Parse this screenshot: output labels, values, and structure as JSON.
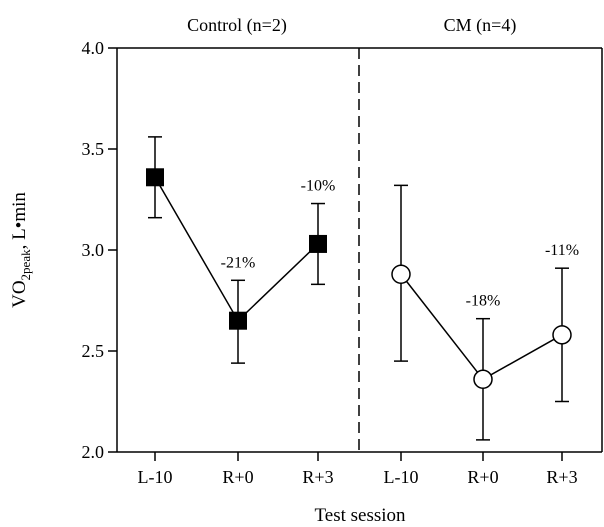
{
  "chart_data": {
    "type": "line",
    "xlabel": "Test session",
    "ylabel": {
      "main": "VO",
      "sub": "2peak",
      "suffix": ", L•min"
    },
    "ylim": [
      2.0,
      4.0
    ],
    "yticks": [
      "2.0",
      "2.5",
      "3.0",
      "3.5",
      "4.0"
    ],
    "grid": false,
    "groups": [
      {
        "title": "Control (n=2)",
        "categories": [
          "L-10",
          "R+0",
          "R+3"
        ],
        "marker": "filled-square",
        "values": [
          3.36,
          2.65,
          3.03
        ],
        "error_low": [
          3.16,
          2.44,
          2.83
        ],
        "error_high": [
          3.56,
          2.85,
          3.23
        ],
        "annotations": [
          "",
          "-21%",
          "-10%"
        ]
      },
      {
        "title": "CM (n=4)",
        "categories": [
          "L-10",
          "R+0",
          "R+3"
        ],
        "marker": "open-circle",
        "values": [
          2.88,
          2.36,
          2.58
        ],
        "error_low": [
          2.45,
          2.06,
          2.25
        ],
        "error_high": [
          3.32,
          2.66,
          2.91
        ],
        "annotations": [
          "",
          "-18%",
          "-11%"
        ]
      }
    ]
  }
}
